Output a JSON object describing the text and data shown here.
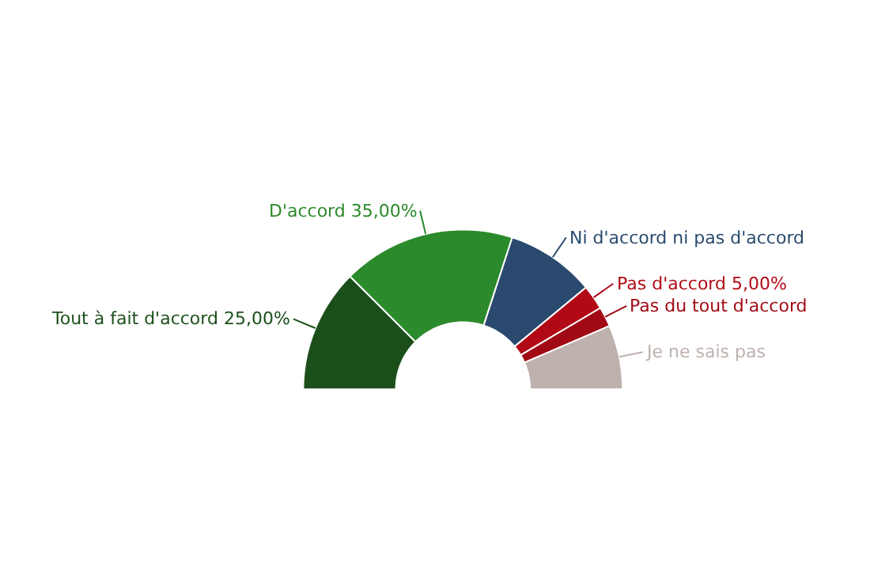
{
  "chart_data": {
    "type": "donut",
    "categories": [
      "Tout à fait d'accord",
      "D'accord",
      "Ni d'accord ni pas d'accord",
      "Pas d'accord",
      "Pas du tout d'accord",
      "Je ne sais pas"
    ],
    "values": [
      25,
      35,
      18,
      5,
      4,
      13
    ],
    "colors": [
      "#1b4f1a",
      "#2b8a2b",
      "#294a6e",
      "#b10a16",
      "#a10a14",
      "#bfb1ae"
    ],
    "value_labels": [
      "25,00%",
      "35,00%",
      null,
      "5,00%",
      null,
      null
    ],
    "legend": false
  }
}
